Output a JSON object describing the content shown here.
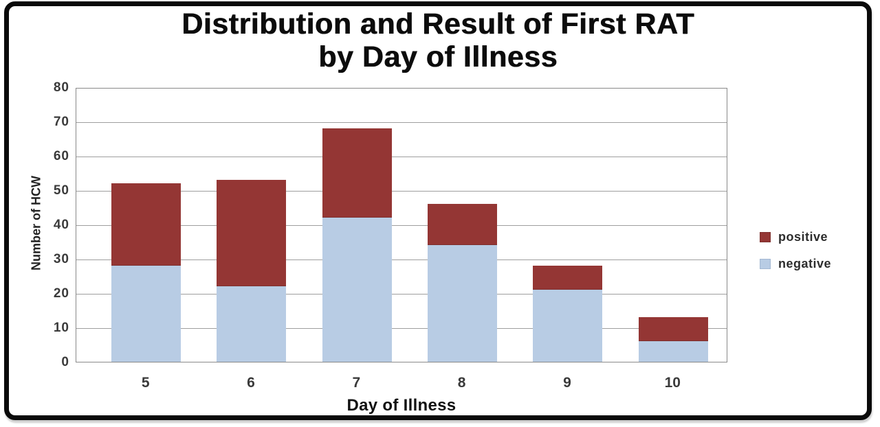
{
  "chart_data": {
    "type": "bar",
    "stacked": true,
    "title": "Distribution and Result of First RAT by Day of Illness",
    "title_lines": [
      "Distribution and Result of First RAT",
      "by Day of Illness"
    ],
    "categories": [
      "5",
      "6",
      "7",
      "8",
      "9",
      "10"
    ],
    "series": [
      {
        "name": "positive",
        "color": "#943634",
        "border_color": "#7e302e",
        "values": [
          24,
          31,
          26,
          12,
          7,
          7
        ]
      },
      {
        "name": "negative",
        "color": "#b8cce4",
        "border_color": "#a3b8d2",
        "values": [
          28,
          22,
          42,
          34,
          21,
          6
        ]
      }
    ],
    "stack_bottom_series": "negative",
    "stack_totals": [
      52,
      53,
      68,
      46,
      28,
      13
    ],
    "xlabel": "Day of Illness",
    "ylabel": "Number of HCW",
    "ylim": [
      0,
      80
    ],
    "ytick_step": 10,
    "ytick_labels": [
      "80",
      "70",
      "60",
      "50",
      "40",
      "30",
      "20",
      "10",
      "0"
    ],
    "grid": true,
    "legend_position": "right",
    "legend_items": [
      "positive",
      "negative"
    ]
  },
  "style": {
    "gridline_color": "#9e9e9e",
    "plot_border_color": "#898989",
    "frame_border_color": "#0a0a0a",
    "tick_label_color": "#3a3a3a",
    "background_color": "#ffffff"
  }
}
